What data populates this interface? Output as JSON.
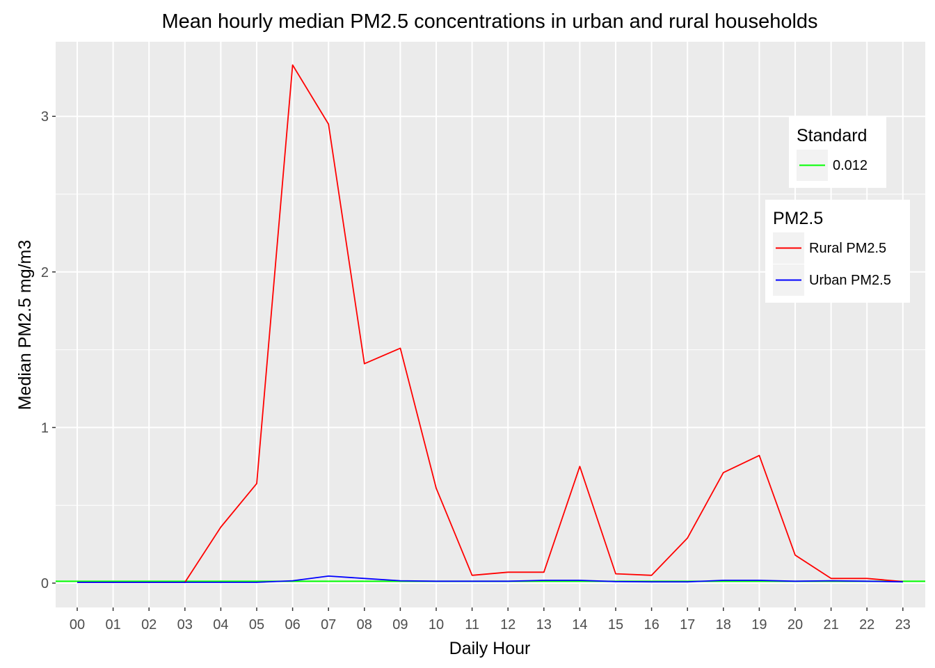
{
  "chart_data": {
    "type": "line",
    "title": "Mean hourly median PM2.5 concentrations in urban and rural households",
    "xlabel": "Daily Hour",
    "ylabel": "Median PM2.5 mg/m3",
    "categories": [
      "00",
      "01",
      "02",
      "03",
      "04",
      "05",
      "06",
      "07",
      "08",
      "09",
      "10",
      "11",
      "12",
      "13",
      "14",
      "15",
      "16",
      "17",
      "18",
      "19",
      "20",
      "21",
      "22",
      "23"
    ],
    "ylim": [
      -0.15,
      3.4
    ],
    "yticks": [
      0,
      1,
      2,
      3
    ],
    "ytick_labels": [
      "0",
      "1",
      "2",
      "3"
    ],
    "grid": true,
    "series": [
      {
        "name": "Rural PM2.5",
        "color": "#ff0000",
        "values": [
          0.005,
          0.005,
          0.005,
          0.005,
          0.36,
          0.64,
          3.33,
          2.95,
          1.41,
          1.51,
          0.61,
          0.05,
          0.07,
          0.07,
          0.75,
          0.06,
          0.05,
          0.29,
          0.71,
          0.82,
          0.18,
          0.03,
          0.03,
          0.01
        ]
      },
      {
        "name": "Urban PM2.5",
        "color": "#0000ff",
        "values": [
          0.005,
          0.005,
          0.005,
          0.005,
          0.005,
          0.005,
          0.015,
          0.045,
          0.03,
          0.015,
          0.012,
          0.012,
          0.012,
          0.018,
          0.018,
          0.01,
          0.008,
          0.008,
          0.018,
          0.018,
          0.012,
          0.015,
          0.012,
          0.008
        ]
      }
    ],
    "reference_lines": [
      {
        "value": 0.012,
        "color": "#00ff00"
      }
    ],
    "legends": [
      {
        "title": "Standard",
        "entries": [
          {
            "label": "0.012",
            "color": "#00ff00"
          }
        ]
      },
      {
        "title": "PM2.5",
        "entries": [
          {
            "label": "Rural PM2.5",
            "color": "#ff0000"
          },
          {
            "label": "Urban PM2.5",
            "color": "#0000ff"
          }
        ]
      }
    ],
    "legend_position": "top-right"
  }
}
